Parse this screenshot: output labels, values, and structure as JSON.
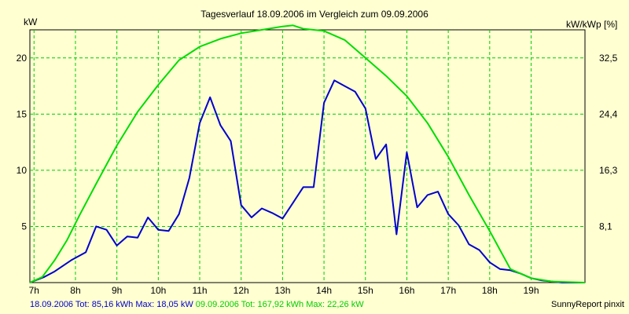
{
  "chart_data": {
    "type": "line",
    "title": "Tagesverlauf 18.09.2006 im Vergleich zum 09.09.2006",
    "ylabel_left": "kW",
    "ylabel_right": "kW/kWp [%]",
    "x_ticks": [
      "7h",
      "8h",
      "9h",
      "10h",
      "11h",
      "12h",
      "13h",
      "14h",
      "15h",
      "16h",
      "17h",
      "18h",
      "19h"
    ],
    "x_tick_values": [
      7,
      8,
      9,
      10,
      11,
      12,
      13,
      14,
      15,
      16,
      17,
      18,
      19
    ],
    "xlim": [
      6.9,
      20.3
    ],
    "ylim": [
      0,
      22.5
    ],
    "y_ticks": [
      "5",
      "10",
      "15",
      "20"
    ],
    "y_tick_values": [
      5,
      10,
      15,
      20
    ],
    "y2_ticks": [
      "8,1",
      "16,3",
      "24,4",
      "32,5"
    ],
    "grid": true,
    "series": [
      {
        "name": "18.09.2006",
        "color": "#0000cc",
        "points": [
          [
            6.9,
            0
          ],
          [
            7.25,
            0.5
          ],
          [
            7.5,
            1
          ],
          [
            7.9,
            2
          ],
          [
            8.25,
            2.7
          ],
          [
            8.5,
            5
          ],
          [
            8.75,
            4.7
          ],
          [
            9.0,
            3.3
          ],
          [
            9.25,
            4.1
          ],
          [
            9.5,
            4
          ],
          [
            9.75,
            5.8
          ],
          [
            10.0,
            4.7
          ],
          [
            10.25,
            4.6
          ],
          [
            10.5,
            6.1
          ],
          [
            10.75,
            9.3
          ],
          [
            11.0,
            14.2
          ],
          [
            11.25,
            16.5
          ],
          [
            11.5,
            14
          ],
          [
            11.75,
            12.6
          ],
          [
            12.0,
            6.9
          ],
          [
            12.25,
            5.8
          ],
          [
            12.5,
            6.6
          ],
          [
            12.75,
            6.2
          ],
          [
            13.0,
            5.7
          ],
          [
            13.25,
            7.1
          ],
          [
            13.5,
            8.5
          ],
          [
            13.75,
            8.5
          ],
          [
            14.0,
            16
          ],
          [
            14.25,
            18
          ],
          [
            14.5,
            17.5
          ],
          [
            14.75,
            17
          ],
          [
            15.0,
            15.5
          ],
          [
            15.25,
            11
          ],
          [
            15.5,
            12.3
          ],
          [
            15.75,
            4.3
          ],
          [
            16.0,
            11.6
          ],
          [
            16.25,
            6.7
          ],
          [
            16.5,
            7.8
          ],
          [
            16.75,
            8.1
          ],
          [
            17.0,
            6.1
          ],
          [
            17.25,
            5.1
          ],
          [
            17.5,
            3.4
          ],
          [
            17.75,
            2.9
          ],
          [
            18.0,
            1.8
          ],
          [
            18.25,
            1.2
          ],
          [
            18.5,
            1.1
          ],
          [
            18.75,
            0.8
          ],
          [
            19.0,
            0.4
          ],
          [
            19.25,
            0.2
          ],
          [
            19.5,
            0.1
          ],
          [
            19.75,
            0
          ],
          [
            20.3,
            0
          ]
        ]
      },
      {
        "name": "09.09.2006",
        "color": "#00dd00",
        "points": [
          [
            6.9,
            0
          ],
          [
            7.2,
            0.5
          ],
          [
            7.5,
            2
          ],
          [
            7.8,
            3.8
          ],
          [
            8.1,
            6
          ],
          [
            8.5,
            8.8
          ],
          [
            9.0,
            12.2
          ],
          [
            9.5,
            15.2
          ],
          [
            10.0,
            17.6
          ],
          [
            10.5,
            19.8
          ],
          [
            11.0,
            21
          ],
          [
            11.5,
            21.7
          ],
          [
            12.0,
            22.2
          ],
          [
            12.5,
            22.5
          ],
          [
            13.0,
            22.8
          ],
          [
            13.25,
            22.9
          ],
          [
            13.5,
            22.6
          ],
          [
            14.0,
            22.4
          ],
          [
            14.5,
            21.6
          ],
          [
            15.0,
            20
          ],
          [
            15.5,
            18.4
          ],
          [
            16.0,
            16.6
          ],
          [
            16.5,
            14.2
          ],
          [
            17.0,
            11.2
          ],
          [
            17.5,
            7.8
          ],
          [
            18.0,
            4.6
          ],
          [
            18.5,
            1.2
          ],
          [
            19.0,
            0.4
          ],
          [
            19.5,
            0.1
          ],
          [
            20.3,
            0
          ]
        ]
      }
    ]
  },
  "footer": {
    "series1_label": "18.09.2006 Tot: 85,16 kWh Max: 18,05 kW",
    "series2_label": "09.09.2006 Tot: 167,92 kWh Max: 22,26 kW",
    "credit": "SunnyReport pinxit"
  }
}
